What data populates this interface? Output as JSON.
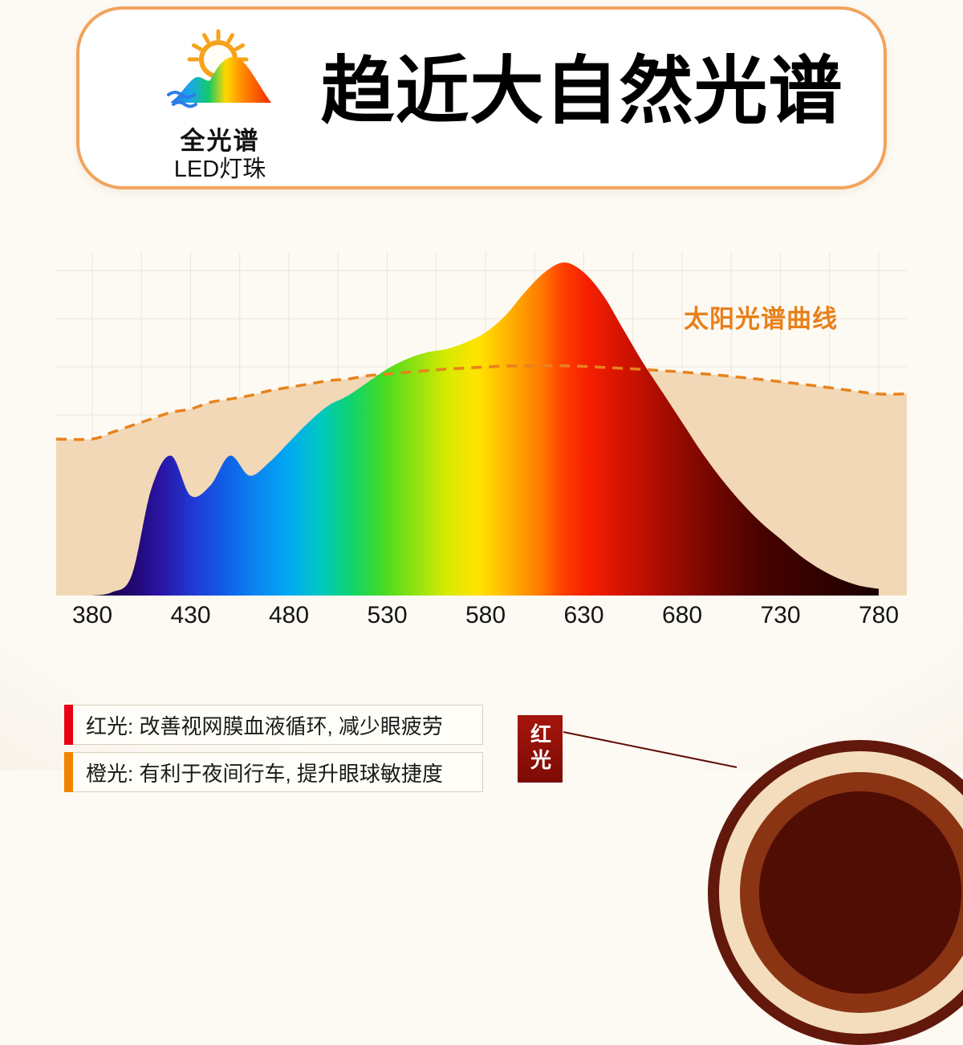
{
  "header": {
    "logo_line1": "全光谱",
    "logo_line2": "LED灯珠",
    "title": "趋近大自然光谱"
  },
  "chart": {
    "sun_label": "太阳光谱曲线",
    "x_ticks": [
      "380",
      "430",
      "480",
      "530",
      "580",
      "630",
      "680",
      "730",
      "780"
    ]
  },
  "chart_data": {
    "type": "area",
    "title": "趋近大自然光谱",
    "xlabel": "",
    "ylabel": "",
    "xlim": [
      380,
      780
    ],
    "ylim": [
      0,
      1
    ],
    "grid": true,
    "annotation": "太阳光谱曲线",
    "x": [
      380,
      390,
      400,
      410,
      420,
      430,
      440,
      450,
      460,
      470,
      480,
      490,
      500,
      510,
      520,
      530,
      540,
      550,
      560,
      570,
      580,
      590,
      600,
      610,
      620,
      630,
      640,
      650,
      660,
      670,
      680,
      690,
      700,
      710,
      720,
      730,
      740,
      750,
      760,
      770,
      780
    ],
    "series": [
      {
        "name": "led_spectrum",
        "values": [
          0,
          0.01,
          0.06,
          0.32,
          0.42,
          0.3,
          0.33,
          0.42,
          0.36,
          0.4,
          0.46,
          0.52,
          0.57,
          0.6,
          0.64,
          0.68,
          0.71,
          0.73,
          0.74,
          0.76,
          0.79,
          0.84,
          0.91,
          0.97,
          1.0,
          0.97,
          0.9,
          0.8,
          0.7,
          0.61,
          0.52,
          0.43,
          0.35,
          0.28,
          0.22,
          0.17,
          0.12,
          0.08,
          0.05,
          0.03,
          0.02
        ]
      },
      {
        "name": "太阳光谱曲线",
        "values": [
          0.47,
          0.49,
          0.51,
          0.53,
          0.55,
          0.56,
          0.58,
          0.59,
          0.6,
          0.615,
          0.625,
          0.635,
          0.645,
          0.65,
          0.66,
          0.665,
          0.67,
          0.675,
          0.68,
          0.683,
          0.686,
          0.689,
          0.69,
          0.69,
          0.69,
          0.688,
          0.685,
          0.682,
          0.679,
          0.675,
          0.671,
          0.666,
          0.661,
          0.655,
          0.649,
          0.642,
          0.635,
          0.628,
          0.62,
          0.612,
          0.605
        ]
      }
    ]
  },
  "benefits": [
    {
      "accent": "#e60012",
      "text": "红光: 改善视网膜血液循环, 减少眼疲劳"
    },
    {
      "accent": "#f08300",
      "text": "橙光: 有利于夜间行车, 提升眼球敏捷度"
    }
  ],
  "callout": {
    "label": "红光",
    "bg": "#9a120b"
  },
  "colors": {
    "card_border": "#f2a35d",
    "sun_curve": "#e8821d",
    "sun_fill": "#f2d8b6",
    "title_text": "#000000"
  }
}
